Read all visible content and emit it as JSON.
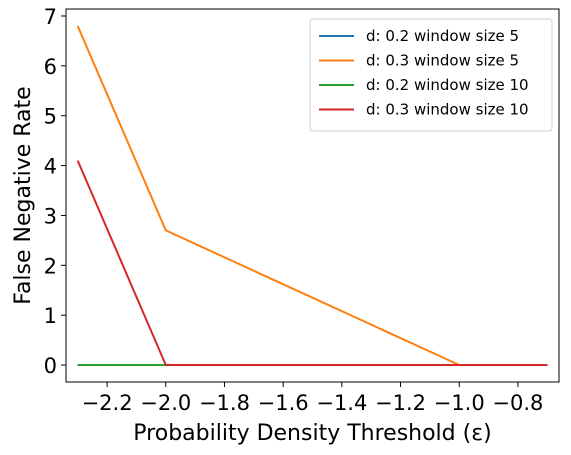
{
  "chart_data": {
    "type": "line",
    "title": "",
    "xlabel": "Probability Density Threshold (ε)",
    "ylabel": "False Negative Rate",
    "xlim": [
      -2.34,
      -0.66
    ],
    "ylim": [
      -0.34,
      7.14
    ],
    "xticks": [
      -2.2,
      -2.0,
      -1.8,
      -1.6,
      -1.4,
      -1.2,
      -1.0,
      -0.8
    ],
    "xtick_labels": [
      "−2.2",
      "−2.0",
      "−1.8",
      "−1.6",
      "−1.4",
      "−1.2",
      "−1.0",
      "−0.8"
    ],
    "yticks": [
      0,
      1,
      2,
      3,
      4,
      5,
      6,
      7
    ],
    "ytick_labels": [
      "0",
      "1",
      "2",
      "3",
      "4",
      "5",
      "6",
      "7"
    ],
    "grid": false,
    "legend_position": "top-right",
    "series": [
      {
        "name": "d: 0.2 window size 5",
        "color": "#1f77b4",
        "x": [
          -2.3,
          -2.0,
          -1.0,
          -0.7
        ],
        "y": [
          0,
          0,
          0,
          0
        ]
      },
      {
        "name": "d: 0.3 window size 5",
        "color": "#ff7f0e",
        "x": [
          -2.3,
          -2.0,
          -1.0,
          -0.7
        ],
        "y": [
          6.8,
          2.7,
          0,
          0
        ]
      },
      {
        "name": "d: 0.2 window size 10",
        "color": "#2ca02c",
        "x": [
          -2.3,
          -2.0,
          -1.0,
          -0.7
        ],
        "y": [
          0,
          0,
          0,
          0
        ]
      },
      {
        "name": "d: 0.3 window size 10",
        "color": "#d62728",
        "x": [
          -2.3,
          -2.0,
          -1.0,
          -0.7
        ],
        "y": [
          4.1,
          0,
          0,
          0
        ]
      }
    ]
  }
}
